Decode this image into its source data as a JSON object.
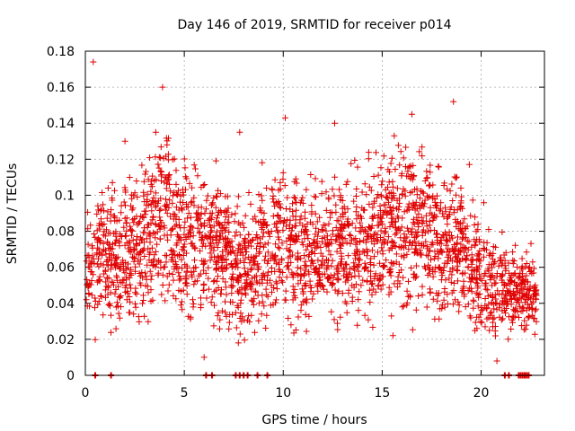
{
  "chart_data": {
    "type": "scatter",
    "title": "Day 146 of 2019, SRMTID for receiver p014",
    "xlabel": "GPS time / hours",
    "ylabel": "SRMTID / TECUs",
    "xlim": [
      0,
      23.2
    ],
    "ylim": [
      0,
      0.18
    ],
    "xticks": [
      0,
      5,
      10,
      15,
      20
    ],
    "yticks": [
      0,
      0.02,
      0.04,
      0.06,
      0.08,
      0.1,
      0.12,
      0.14,
      0.16,
      0.18
    ],
    "x_tick_labels": [
      "0",
      "5",
      "10",
      "15",
      "20"
    ],
    "y_tick_labels": [
      "0",
      "0.02",
      "0.04",
      "0.06",
      "0.08",
      "0.1",
      "0.12",
      "0.14",
      "0.16",
      "0.18"
    ],
    "grid": true,
    "marker": "plus",
    "color": "#e00000",
    "series": [
      {
        "name": "p014",
        "points_sampled": true
      }
    ],
    "trend_hours": [
      0,
      1,
      2,
      3,
      4,
      5,
      6,
      7,
      8,
      9,
      10,
      11,
      12,
      13,
      14,
      15,
      16,
      17,
      18,
      19,
      20,
      21,
      22,
      23
    ],
    "trend_median": [
      0.055,
      0.07,
      0.068,
      0.075,
      0.09,
      0.075,
      0.075,
      0.068,
      0.055,
      0.07,
      0.075,
      0.068,
      0.068,
      0.07,
      0.075,
      0.078,
      0.085,
      0.082,
      0.075,
      0.07,
      0.055,
      0.048,
      0.045,
      0.05
    ],
    "trend_spread": [
      0.02,
      0.025,
      0.025,
      0.03,
      0.035,
      0.028,
      0.025,
      0.025,
      0.025,
      0.028,
      0.028,
      0.025,
      0.025,
      0.025,
      0.028,
      0.03,
      0.032,
      0.03,
      0.03,
      0.028,
      0.025,
      0.018,
      0.015,
      0.015
    ],
    "zero_markers_hours": [
      0.5,
      1.3,
      6.1,
      6.4,
      7.6,
      7.8,
      8.0,
      8.2,
      8.7,
      9.2,
      21.2,
      21.4,
      21.9,
      22.0,
      22.1,
      22.2,
      22.3,
      22.4
    ],
    "outliers": [
      {
        "x": 0.4,
        "y": 0.174
      },
      {
        "x": 3.9,
        "y": 0.16
      },
      {
        "x": 18.6,
        "y": 0.152
      },
      {
        "x": 10.1,
        "y": 0.143
      },
      {
        "x": 16.5,
        "y": 0.145
      },
      {
        "x": 2.0,
        "y": 0.13
      },
      {
        "x": 7.8,
        "y": 0.135
      },
      {
        "x": 12.6,
        "y": 0.14
      },
      {
        "x": 6.0,
        "y": 0.01
      },
      {
        "x": 20.8,
        "y": 0.008
      }
    ]
  }
}
